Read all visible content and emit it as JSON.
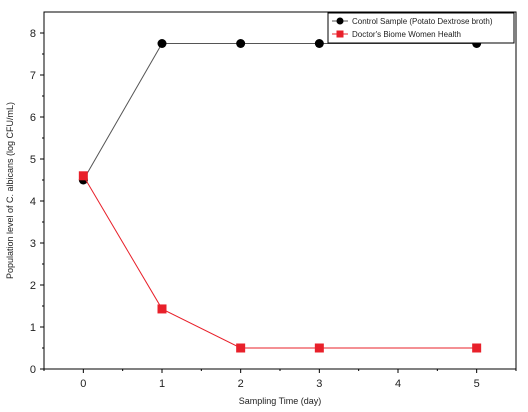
{
  "chart_data": {
    "type": "line",
    "title": "",
    "xlabel": "Sampling Time (day)",
    "ylabel": "Population level of C. albicans (log CFU/mL)",
    "xlim": [
      -0.5,
      5.5
    ],
    "ylim": [
      0,
      8.5
    ],
    "xticks": [
      0,
      1,
      2,
      3,
      4,
      5
    ],
    "yticks": [
      0,
      1,
      2,
      3,
      4,
      5,
      6,
      7,
      8
    ],
    "grid": false,
    "legend_position": "top-right",
    "series": [
      {
        "name": "Control Sample (Potato Dextrose broth)",
        "color": "#000000",
        "line_color": "#555555",
        "marker": "circle",
        "x": [
          0,
          1,
          2,
          3,
          5
        ],
        "y": [
          4.5,
          7.75,
          7.75,
          7.75,
          7.75
        ]
      },
      {
        "name": "Doctor's Biome Women Health",
        "color": "#e8202a",
        "line_color": "#e8202a",
        "marker": "square",
        "x": [
          0,
          1,
          2,
          3,
          5
        ],
        "y": [
          4.6,
          1.43,
          0.5,
          0.5,
          0.5
        ]
      }
    ]
  }
}
